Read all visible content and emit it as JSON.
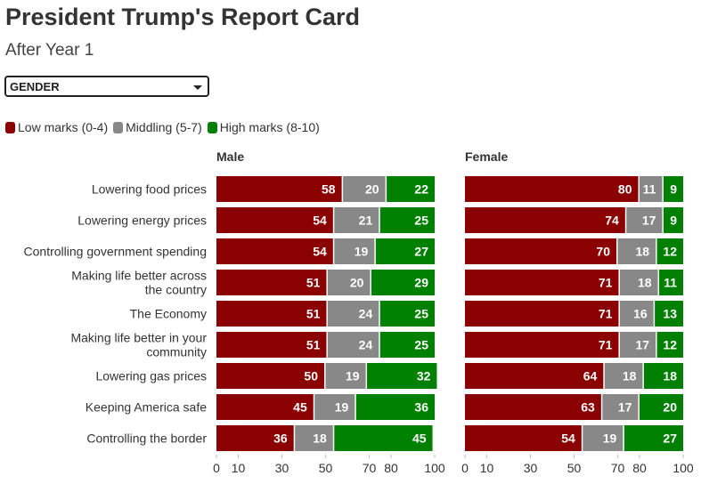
{
  "title": "President Trump's Report Card",
  "subtitle": "After Year 1",
  "dropdown": {
    "selected": "GENDER"
  },
  "legend": [
    {
      "label": "Low marks (0-4)",
      "color": "#8b0000"
    },
    {
      "label": "Middling (5-7)",
      "color": "#888888"
    },
    {
      "label": "High marks (8-10)",
      "color": "#008000"
    }
  ],
  "chart_data": [
    {
      "type": "bar",
      "orientation": "horizontal",
      "stacked": true,
      "title": "Male",
      "categories": [
        "Lowering food prices",
        "Lowering energy prices",
        "Controlling government spending",
        "Making life better across the country",
        "The Economy",
        "Making life better in your community",
        "Lowering gas prices",
        "Keeping America safe",
        "Controlling the border"
      ],
      "series": [
        {
          "name": "Low marks (0-4)",
          "values": [
            58,
            54,
            54,
            51,
            51,
            51,
            50,
            45,
            36
          ]
        },
        {
          "name": "Middling (5-7)",
          "values": [
            20,
            21,
            19,
            20,
            24,
            24,
            19,
            19,
            18
          ]
        },
        {
          "name": "High marks (8-10)",
          "values": [
            22,
            25,
            27,
            29,
            25,
            25,
            32,
            36,
            45
          ]
        }
      ],
      "xlim": [
        0,
        100
      ],
      "xticks": [
        0,
        10,
        30,
        50,
        70,
        80,
        100
      ]
    },
    {
      "type": "bar",
      "orientation": "horizontal",
      "stacked": true,
      "title": "Female",
      "categories": [
        "Lowering food prices",
        "Lowering energy prices",
        "Controlling government spending",
        "Making life better across the country",
        "The Economy",
        "Making life better in your community",
        "Lowering gas prices",
        "Keeping America safe",
        "Controlling the border"
      ],
      "series": [
        {
          "name": "Low marks (0-4)",
          "values": [
            80,
            74,
            70,
            71,
            71,
            71,
            64,
            63,
            54
          ]
        },
        {
          "name": "Middling (5-7)",
          "values": [
            11,
            17,
            18,
            18,
            16,
            17,
            18,
            17,
            19
          ]
        },
        {
          "name": "High marks (8-10)",
          "values": [
            9,
            9,
            12,
            11,
            13,
            12,
            18,
            20,
            27
          ]
        }
      ],
      "xlim": [
        0,
        100
      ],
      "xticks": [
        0,
        10,
        30,
        50,
        70,
        80,
        100
      ]
    }
  ]
}
